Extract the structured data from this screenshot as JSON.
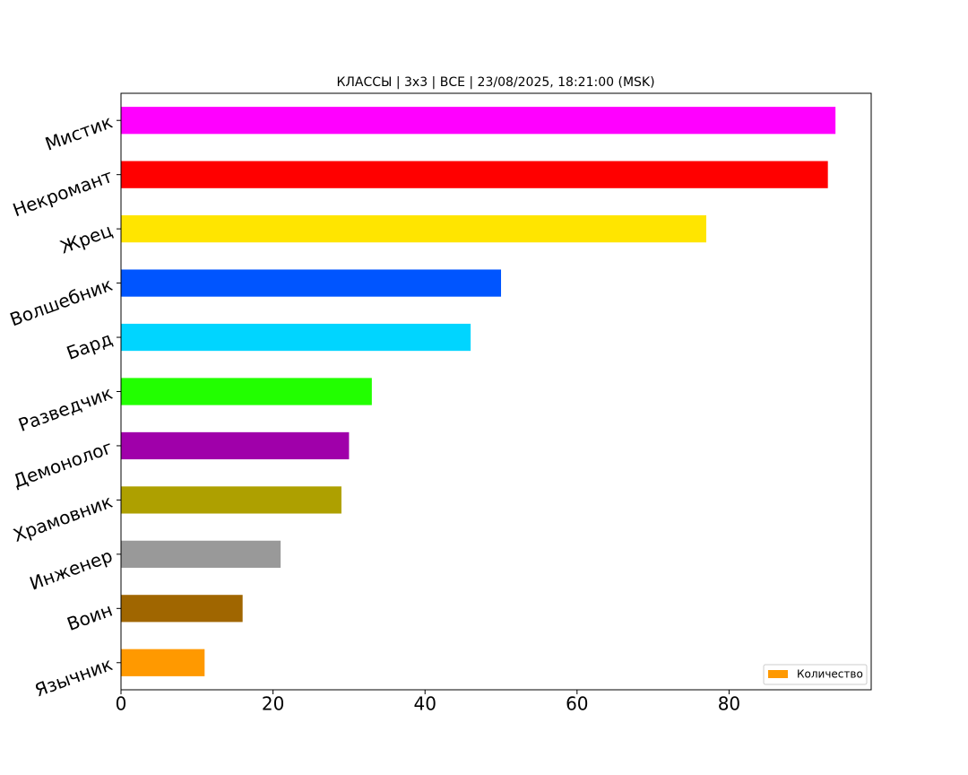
{
  "chart_data": {
    "type": "barh",
    "title": "КЛАССЫ | 3x3 | ВСЕ | 23/08/2025, 18:21:00 (MSK)",
    "categories": [
      "Мистик",
      "Некромант",
      "Жрец",
      "Волшебник",
      "Бард",
      "Разведчик",
      "Демонолог",
      "Храмовник",
      "Инженер",
      "Воин",
      "Язычник"
    ],
    "series": [
      {
        "name": "Количество",
        "colors": [
          "#ff00ff",
          "#ff0000",
          "#ffe500",
          "#0055ff",
          "#00d5ff",
          "#22ff00",
          "#a000aa",
          "#aea000",
          "#999999",
          "#a06600",
          "#ff9900"
        ],
        "values": [
          94,
          93,
          77,
          50,
          46,
          33,
          30,
          29,
          21,
          16,
          11
        ]
      }
    ],
    "xlim": [
      0,
      98.7
    ],
    "xticks": [
      0,
      20,
      40,
      60,
      80
    ],
    "legend": "lower right"
  }
}
